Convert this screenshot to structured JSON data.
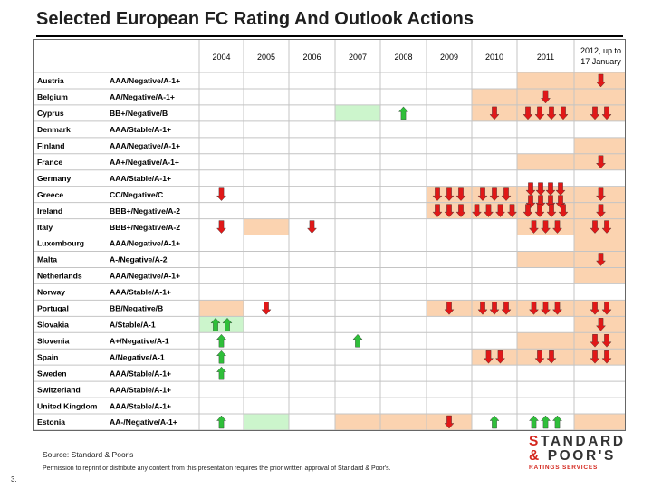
{
  "title": "Selected European FC Rating And Outlook Actions",
  "footer": {
    "source": "Source: Standard & Poor's",
    "permission": "Permission to reprint or distribute any content from this presentation requires the prior written approval of Standard & Poor's.",
    "page_number": "3.",
    "logo_line1_first": "S",
    "logo_line1_rest": "TANDARD",
    "logo_line2_first": "&",
    "logo_line2_rest": " POOR'S",
    "logo_line3": "RATINGS SERVICES"
  },
  "colors": {
    "shade_orange": "#fbd3b0",
    "shade_green": "#ccf5cc",
    "arrow_down": "#e11818",
    "arrow_up": "#2fbf3a",
    "grid": "#c4c4c4"
  },
  "table": {
    "columns": [
      "2004",
      "2005",
      "2006",
      "2007",
      "2008",
      "2009",
      "2010",
      "2011",
      "2012, up to 17 January"
    ],
    "rows": [
      {
        "country": "Austria",
        "rating": "AAA/Negative/A-1+",
        "shade": {
          "7": "o",
          "8": "o"
        },
        "arrows": {
          "8": "D1"
        }
      },
      {
        "country": "Belgium",
        "rating": "AA/Negative/A-1+",
        "shade": {
          "6": "o",
          "7": "o",
          "8": "o"
        },
        "arrows": {
          "7": "D1"
        }
      },
      {
        "country": "Cyprus",
        "rating": "BB+/Negative/B",
        "shade": {
          "3": "g",
          "6": "o",
          "7": "o",
          "8": "o"
        },
        "arrows": {
          "4": "U1",
          "6": "D1",
          "7": "D4",
          "8": "D2"
        }
      },
      {
        "country": "Denmark",
        "rating": "AAA/Stable/A-1+",
        "shade": {},
        "arrows": {}
      },
      {
        "country": "Finland",
        "rating": "AAA/Negative/A-1+",
        "shade": {
          "8": "o"
        },
        "arrows": {}
      },
      {
        "country": "France",
        "rating": "AA+/Negative/A-1+",
        "shade": {
          "7": "o",
          "8": "o"
        },
        "arrows": {
          "8": "D1"
        }
      },
      {
        "country": "Germany",
        "rating": "AAA/Stable/A-1+",
        "shade": {},
        "arrows": {}
      },
      {
        "country": "Greece",
        "rating": "CC/Negative/C",
        "shade": {
          "5": "o",
          "6": "o",
          "7": "o",
          "8": "o"
        },
        "arrows": {
          "0": "D1",
          "5": "D3",
          "6": "D3",
          "7": "D8",
          "8": "D1"
        }
      },
      {
        "country": "Ireland",
        "rating": "BBB+/Negative/A-2",
        "shade": {
          "5": "o",
          "6": "o",
          "7": "o",
          "8": "o"
        },
        "arrows": {
          "5": "D3",
          "6": "D4",
          "7": "D4",
          "8": "D1"
        }
      },
      {
        "country": "Italy",
        "rating": "BBB+/Negative/A-2",
        "shade": {
          "1": "o",
          "7": "o",
          "8": "o"
        },
        "arrows": {
          "0": "D1",
          "2": "D1",
          "7": "D3",
          "8": "D2"
        }
      },
      {
        "country": "Luxembourg",
        "rating": "AAA/Negative/A-1+",
        "shade": {
          "8": "o"
        },
        "arrows": {}
      },
      {
        "country": "Malta",
        "rating": "A-/Negative/A-2",
        "shade": {
          "7": "o",
          "8": "o"
        },
        "arrows": {
          "8": "D1"
        }
      },
      {
        "country": "Netherlands",
        "rating": "AAA/Negative/A-1+",
        "shade": {
          "8": "o"
        },
        "arrows": {}
      },
      {
        "country": "Norway",
        "rating": "AAA/Stable/A-1+",
        "shade": {},
        "arrows": {}
      },
      {
        "country": "Portugal",
        "rating": "BB/Negative/B",
        "shade": {
          "0": "o",
          "5": "o",
          "6": "o",
          "7": "o",
          "8": "o"
        },
        "arrows": {
          "1": "D1",
          "5": "D1",
          "6": "D3",
          "7": "D3",
          "8": "D2"
        }
      },
      {
        "country": "Slovakia",
        "rating": "A/Stable/A-1",
        "shade": {
          "0": "g",
          "8": "o"
        },
        "arrows": {
          "0": "U2",
          "8": "D1"
        }
      },
      {
        "country": "Slovenia",
        "rating": "A+/Negative/A-1",
        "shade": {
          "7": "o",
          "8": "o"
        },
        "arrows": {
          "0": "U1",
          "3": "U1",
          "8": "D2"
        }
      },
      {
        "country": "Spain",
        "rating": "A/Negative/A-1",
        "shade": {
          "6": "o",
          "7": "o",
          "8": "o"
        },
        "arrows": {
          "0": "U1",
          "6": "D2",
          "7": "D2",
          "8": "D2"
        }
      },
      {
        "country": "Sweden",
        "rating": "AAA/Stable/A-1+",
        "shade": {},
        "arrows": {
          "0": "U1"
        }
      },
      {
        "country": "Switzerland",
        "rating": "AAA/Stable/A-1+",
        "shade": {},
        "arrows": {}
      },
      {
        "country": "United Kingdom",
        "rating": "AAA/Stable/A-1+",
        "shade": {},
        "arrows": {}
      },
      {
        "country": "Estonia",
        "rating": "AA-/Negative/A-1+",
        "shade": {
          "1": "g",
          "3": "o",
          "4": "o",
          "5": "o",
          "8": "o"
        },
        "arrows": {
          "0": "U1",
          "5": "D1",
          "6": "U1",
          "7": "U3"
        }
      }
    ]
  }
}
